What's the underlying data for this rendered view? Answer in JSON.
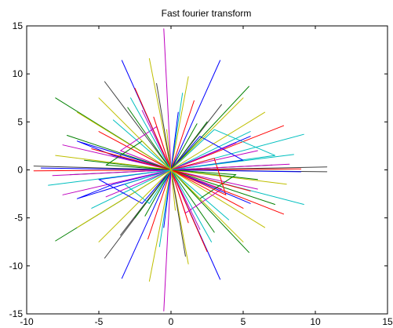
{
  "chart_data": {
    "type": "line",
    "title": "Fast fourier transform",
    "xlabel": "",
    "ylabel": "",
    "xlim": [
      -10,
      15
    ],
    "ylim": [
      -15,
      15
    ],
    "xticks": [
      -10,
      -5,
      0,
      5,
      10,
      15
    ],
    "yticks": [
      -15,
      -10,
      -5,
      0,
      5,
      10,
      15
    ],
    "grid": false,
    "legend": "none",
    "series_colors": [
      "#0000ff",
      "#008000",
      "#ff0000",
      "#00bfbf",
      "#bf00bf",
      "#bfbf00",
      "#404040"
    ],
    "series": [
      {
        "color": "#bf00bf",
        "points": [
          [
            0,
            0
          ],
          [
            -0.5,
            14.7
          ],
          [
            0,
            0
          ],
          [
            -0.5,
            -14.7
          ],
          [
            0,
            0
          ]
        ]
      },
      {
        "color": "#0000ff",
        "points": [
          [
            0,
            0
          ],
          [
            -3.4,
            11.4
          ],
          [
            0,
            0
          ],
          [
            3.4,
            -11.4
          ],
          [
            0,
            0
          ],
          [
            3.4,
            11.4
          ],
          [
            0,
            0
          ],
          [
            -3.4,
            -11.3
          ],
          [
            0,
            0
          ]
        ]
      },
      {
        "color": "#404040",
        "points": [
          [
            0,
            0
          ],
          [
            -4.6,
            9.2
          ],
          [
            0,
            0
          ],
          [
            -4.6,
            -9.2
          ],
          [
            0,
            0
          ],
          [
            10.8,
            0.3
          ],
          [
            0,
            0
          ],
          [
            10.8,
            -0.2
          ],
          [
            0,
            0
          ],
          [
            -9.5,
            0.4
          ],
          [
            0,
            0
          ]
        ]
      },
      {
        "color": "#008000",
        "points": [
          [
            0,
            0
          ],
          [
            -8,
            7.5
          ],
          [
            0,
            0
          ],
          [
            -8,
            -7.4
          ],
          [
            0,
            0
          ],
          [
            5.4,
            8.7
          ],
          [
            0,
            0
          ],
          [
            5.4,
            -8.6
          ],
          [
            0,
            0
          ]
        ]
      },
      {
        "color": "#ff0000",
        "points": [
          [
            0,
            0
          ],
          [
            7.8,
            4.6
          ],
          [
            0,
            0
          ],
          [
            7.8,
            -4.6
          ],
          [
            0,
            0
          ],
          [
            9,
            0.1
          ],
          [
            0,
            0
          ],
          [
            -9.5,
            -0.1
          ],
          [
            0,
            0
          ]
        ]
      },
      {
        "color": "#00bfbf",
        "points": [
          [
            0,
            0
          ],
          [
            9.2,
            3.7
          ],
          [
            0,
            0
          ],
          [
            9.2,
            -3.6
          ],
          [
            0,
            0
          ],
          [
            3,
            4.2
          ],
          [
            7.2,
            1.5
          ],
          [
            0,
            0
          ]
        ]
      },
      {
        "color": "#bfbf00",
        "points": [
          [
            0,
            0
          ],
          [
            -1.5,
            11.6
          ],
          [
            0,
            0
          ],
          [
            1.2,
            9.7
          ],
          [
            0,
            0
          ],
          [
            -1.5,
            -11.6
          ],
          [
            0,
            0
          ],
          [
            1.2,
            -9.8
          ],
          [
            0,
            0
          ]
        ]
      },
      {
        "color": "#0000ff",
        "points": [
          [
            0,
            0
          ],
          [
            -6.5,
            3
          ],
          [
            -4,
            1.5
          ],
          [
            0,
            0
          ],
          [
            -6.5,
            -3
          ],
          [
            -4,
            -1.5
          ],
          [
            0,
            0
          ],
          [
            5.5,
            3.5
          ],
          [
            0,
            0
          ],
          [
            5.5,
            -3.5
          ],
          [
            0,
            0
          ]
        ]
      },
      {
        "color": "#bf00bf",
        "points": [
          [
            0,
            0
          ],
          [
            -7.5,
            2.6
          ],
          [
            0,
            0
          ],
          [
            -7.5,
            -2.6
          ],
          [
            0,
            0
          ],
          [
            6,
            2
          ],
          [
            0,
            0
          ],
          [
            6,
            -2
          ],
          [
            0,
            0
          ],
          [
            -2,
            6.2
          ],
          [
            0,
            0
          ],
          [
            2,
            -6.2
          ],
          [
            0,
            0
          ]
        ]
      },
      {
        "color": "#008000",
        "points": [
          [
            0,
            0
          ],
          [
            -3,
            6.5
          ],
          [
            0,
            0
          ],
          [
            3,
            -6.5
          ],
          [
            0,
            0
          ],
          [
            -6,
            1
          ],
          [
            0,
            0
          ],
          [
            6,
            -1
          ],
          [
            0,
            0
          ],
          [
            2.5,
            5
          ],
          [
            0,
            0
          ],
          [
            -2.5,
            -5
          ],
          [
            0,
            0
          ]
        ]
      },
      {
        "color": "#ff0000",
        "points": [
          [
            0,
            0
          ],
          [
            -2.5,
            8.5
          ],
          [
            0,
            0
          ],
          [
            2.5,
            -8.5
          ],
          [
            0,
            0
          ],
          [
            -5,
            4
          ],
          [
            0,
            0
          ],
          [
            5,
            -4
          ],
          [
            0,
            0
          ],
          [
            1.6,
            7.2
          ],
          [
            0,
            0
          ],
          [
            -1.6,
            -7.2
          ],
          [
            0,
            0
          ]
        ]
      },
      {
        "color": "#00bfbf",
        "points": [
          [
            0,
            0
          ],
          [
            -4,
            5.2
          ],
          [
            0,
            0
          ],
          [
            4,
            -5.2
          ],
          [
            0,
            0
          ],
          [
            -5.5,
            -4
          ],
          [
            0,
            0
          ],
          [
            5.5,
            4
          ],
          [
            0,
            0
          ],
          [
            0.8,
            8
          ],
          [
            0,
            0
          ],
          [
            -0.8,
            -8
          ],
          [
            0,
            0
          ]
        ]
      },
      {
        "color": "#bfbf00",
        "points": [
          [
            0,
            0
          ],
          [
            -6.5,
            6
          ],
          [
            0,
            0
          ],
          [
            6.5,
            -6
          ],
          [
            0,
            0
          ],
          [
            -6.5,
            -6
          ],
          [
            0,
            0
          ],
          [
            6.5,
            6
          ],
          [
            0,
            0
          ],
          [
            -8,
            1.5
          ],
          [
            0,
            0
          ],
          [
            8,
            -1.5
          ],
          [
            0,
            0
          ]
        ]
      },
      {
        "color": "#404040",
        "points": [
          [
            0,
            0
          ],
          [
            -1,
            9
          ],
          [
            0,
            0
          ],
          [
            1,
            -9
          ],
          [
            0,
            0
          ],
          [
            -7,
            -0.5
          ],
          [
            0,
            0
          ],
          [
            7,
            0.5
          ],
          [
            0,
            0
          ],
          [
            3.5,
            6.8
          ],
          [
            0,
            0
          ],
          [
            -3.5,
            -6.8
          ],
          [
            0,
            0
          ]
        ]
      },
      {
        "color": "#0000ff",
        "points": [
          [
            0,
            0
          ],
          [
            -9,
            0.2
          ],
          [
            0,
            0
          ],
          [
            9,
            -0.2
          ],
          [
            0,
            0
          ],
          [
            -2,
            -3.5
          ],
          [
            -5,
            -1
          ],
          [
            0,
            0
          ],
          [
            2,
            3.5
          ],
          [
            5,
            1
          ],
          [
            0,
            0
          ],
          [
            0.5,
            6
          ],
          [
            0,
            0
          ],
          [
            -0.5,
            -6
          ],
          [
            0,
            0
          ]
        ]
      },
      {
        "color": "#bf00bf",
        "points": [
          [
            0,
            0
          ],
          [
            -3.5,
            2
          ],
          [
            -1,
            4.5
          ],
          [
            0,
            0
          ],
          [
            3.5,
            -2
          ],
          [
            1,
            -4.5
          ],
          [
            0,
            0
          ],
          [
            4.5,
            2.8
          ],
          [
            0,
            0
          ],
          [
            -4.5,
            -2.8
          ],
          [
            0,
            0
          ],
          [
            8.2,
            0.6
          ],
          [
            0,
            0
          ],
          [
            -8.2,
            -0.6
          ],
          [
            0,
            0
          ]
        ]
      },
      {
        "color": "#008000",
        "points": [
          [
            0,
            0
          ],
          [
            -2,
            3
          ],
          [
            -4.5,
            0.5
          ],
          [
            0,
            0
          ],
          [
            2,
            -3
          ],
          [
            4.5,
            -0.5
          ],
          [
            0,
            0
          ],
          [
            1.8,
            4.8
          ],
          [
            0,
            0
          ],
          [
            -1.8,
            -4.8
          ],
          [
            0,
            0
          ],
          [
            -7.2,
            3.6
          ],
          [
            0,
            0
          ],
          [
            7.2,
            -3.6
          ],
          [
            0,
            0
          ]
        ]
      },
      {
        "color": "#ff0000",
        "points": [
          [
            0,
            0
          ],
          [
            -1.2,
            5.5
          ],
          [
            0,
            0
          ],
          [
            1.2,
            -5.5
          ],
          [
            0,
            0
          ],
          [
            -5.5,
            2.2
          ],
          [
            0,
            0
          ],
          [
            5.5,
            -2.2
          ],
          [
            0,
            0
          ],
          [
            3,
            1.2
          ],
          [
            3.8,
            -2.6
          ],
          [
            0,
            0
          ]
        ]
      },
      {
        "color": "#00bfbf",
        "points": [
          [
            0,
            0
          ],
          [
            -8.5,
            -1.6
          ],
          [
            0,
            0
          ],
          [
            8.5,
            1.6
          ],
          [
            0,
            0
          ],
          [
            -2.8,
            7.5
          ],
          [
            0,
            0
          ],
          [
            2.8,
            -7.5
          ],
          [
            0,
            0
          ],
          [
            -3.2,
            -1.5
          ],
          [
            -1.5,
            -3.5
          ],
          [
            0,
            0
          ]
        ]
      },
      {
        "color": "#bfbf00",
        "points": [
          [
            0,
            0
          ],
          [
            -5,
            7.5
          ],
          [
            0,
            0
          ],
          [
            5,
            -7.5
          ],
          [
            0,
            0
          ],
          [
            -5,
            -7.5
          ],
          [
            0,
            0
          ],
          [
            5,
            7.5
          ],
          [
            0,
            0
          ],
          [
            -0.3,
            4.2
          ],
          [
            0,
            0
          ],
          [
            0.3,
            -4.2
          ],
          [
            0,
            0
          ]
        ]
      }
    ]
  }
}
